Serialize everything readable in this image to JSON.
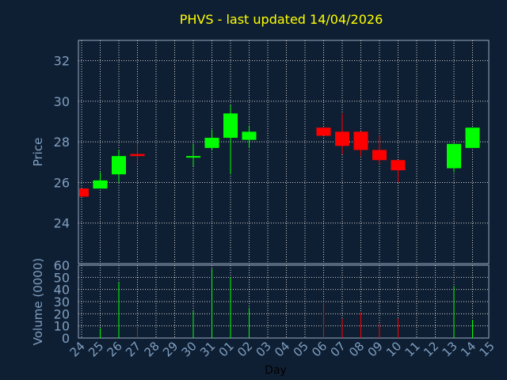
{
  "chart_data": {
    "type": "candlestick",
    "title": "PHVS - last updated 14/04/2026",
    "xlabel": "Day",
    "ylabel_price": "Price",
    "ylabel_volume": "Volume (0000)",
    "x_ticks": [
      "24",
      "25",
      "26",
      "27",
      "28",
      "29",
      "30",
      "31",
      "01",
      "02",
      "03",
      "04",
      "05",
      "06",
      "07",
      "08",
      "09",
      "10",
      "11",
      "12",
      "13",
      "14",
      "15"
    ],
    "price_ticks": [
      "24",
      "26",
      "28",
      "30",
      "32"
    ],
    "price_range": [
      22.0,
      33.0
    ],
    "volume_ticks": [
      "0",
      "10",
      "20",
      "30",
      "40",
      "50",
      "60"
    ],
    "volume_range": [
      0,
      60
    ],
    "grid": true,
    "colors": {
      "background": "#0f1f33",
      "plot_border": "#9aa8c0",
      "title": "#ffff00",
      "axis_text": "#7f9fc0",
      "up": "#00ff00",
      "down": "#ff0000",
      "grid": "#d0d0d0"
    },
    "candles": [
      {
        "day": 0,
        "open": 25.7,
        "high": 25.7,
        "low": 25.3,
        "close": 25.3,
        "volume": 0
      },
      {
        "day": 1,
        "open": 25.7,
        "high": 26.5,
        "low": 25.7,
        "close": 26.1,
        "volume": 8
      },
      {
        "day": 2,
        "open": 26.4,
        "high": 27.6,
        "low": 26.0,
        "close": 27.3,
        "volume": 46
      },
      {
        "day": 3,
        "open": 27.4,
        "high": 27.9,
        "low": 26.9,
        "close": 27.3,
        "volume": 9
      },
      {
        "day": 6,
        "open": 27.3,
        "high": 27.9,
        "low": 26.8,
        "close": 27.3,
        "volume": 22
      },
      {
        "day": 7,
        "open": 27.7,
        "high": 28.6,
        "low": 27.6,
        "close": 28.2,
        "volume": 57
      },
      {
        "day": 8,
        "open": 28.2,
        "high": 29.8,
        "low": 26.4,
        "close": 29.4,
        "volume": 50
      },
      {
        "day": 9,
        "open": 28.1,
        "high": 28.8,
        "low": 27.7,
        "close": 28.5,
        "volume": 25
      },
      {
        "day": 13,
        "open": 28.7,
        "high": 28.7,
        "low": 28.3,
        "close": 28.3,
        "volume": 30
      },
      {
        "day": 14,
        "open": 28.5,
        "high": 29.4,
        "low": 27.4,
        "close": 27.8,
        "volume": 16
      },
      {
        "day": 15,
        "open": 28.5,
        "high": 28.5,
        "low": 27.3,
        "close": 27.6,
        "volume": 21
      },
      {
        "day": 16,
        "open": 27.6,
        "high": 28.3,
        "low": 26.9,
        "close": 27.1,
        "volume": 12
      },
      {
        "day": 17,
        "open": 27.1,
        "high": 27.1,
        "low": 26.0,
        "close": 26.6,
        "volume": 16
      },
      {
        "day": 20,
        "open": 26.7,
        "high": 27.9,
        "low": 26.5,
        "close": 27.9,
        "volume": 43
      },
      {
        "day": 21,
        "open": 27.7,
        "high": 28.7,
        "low": 27.7,
        "close": 28.7,
        "volume": 15
      }
    ]
  }
}
